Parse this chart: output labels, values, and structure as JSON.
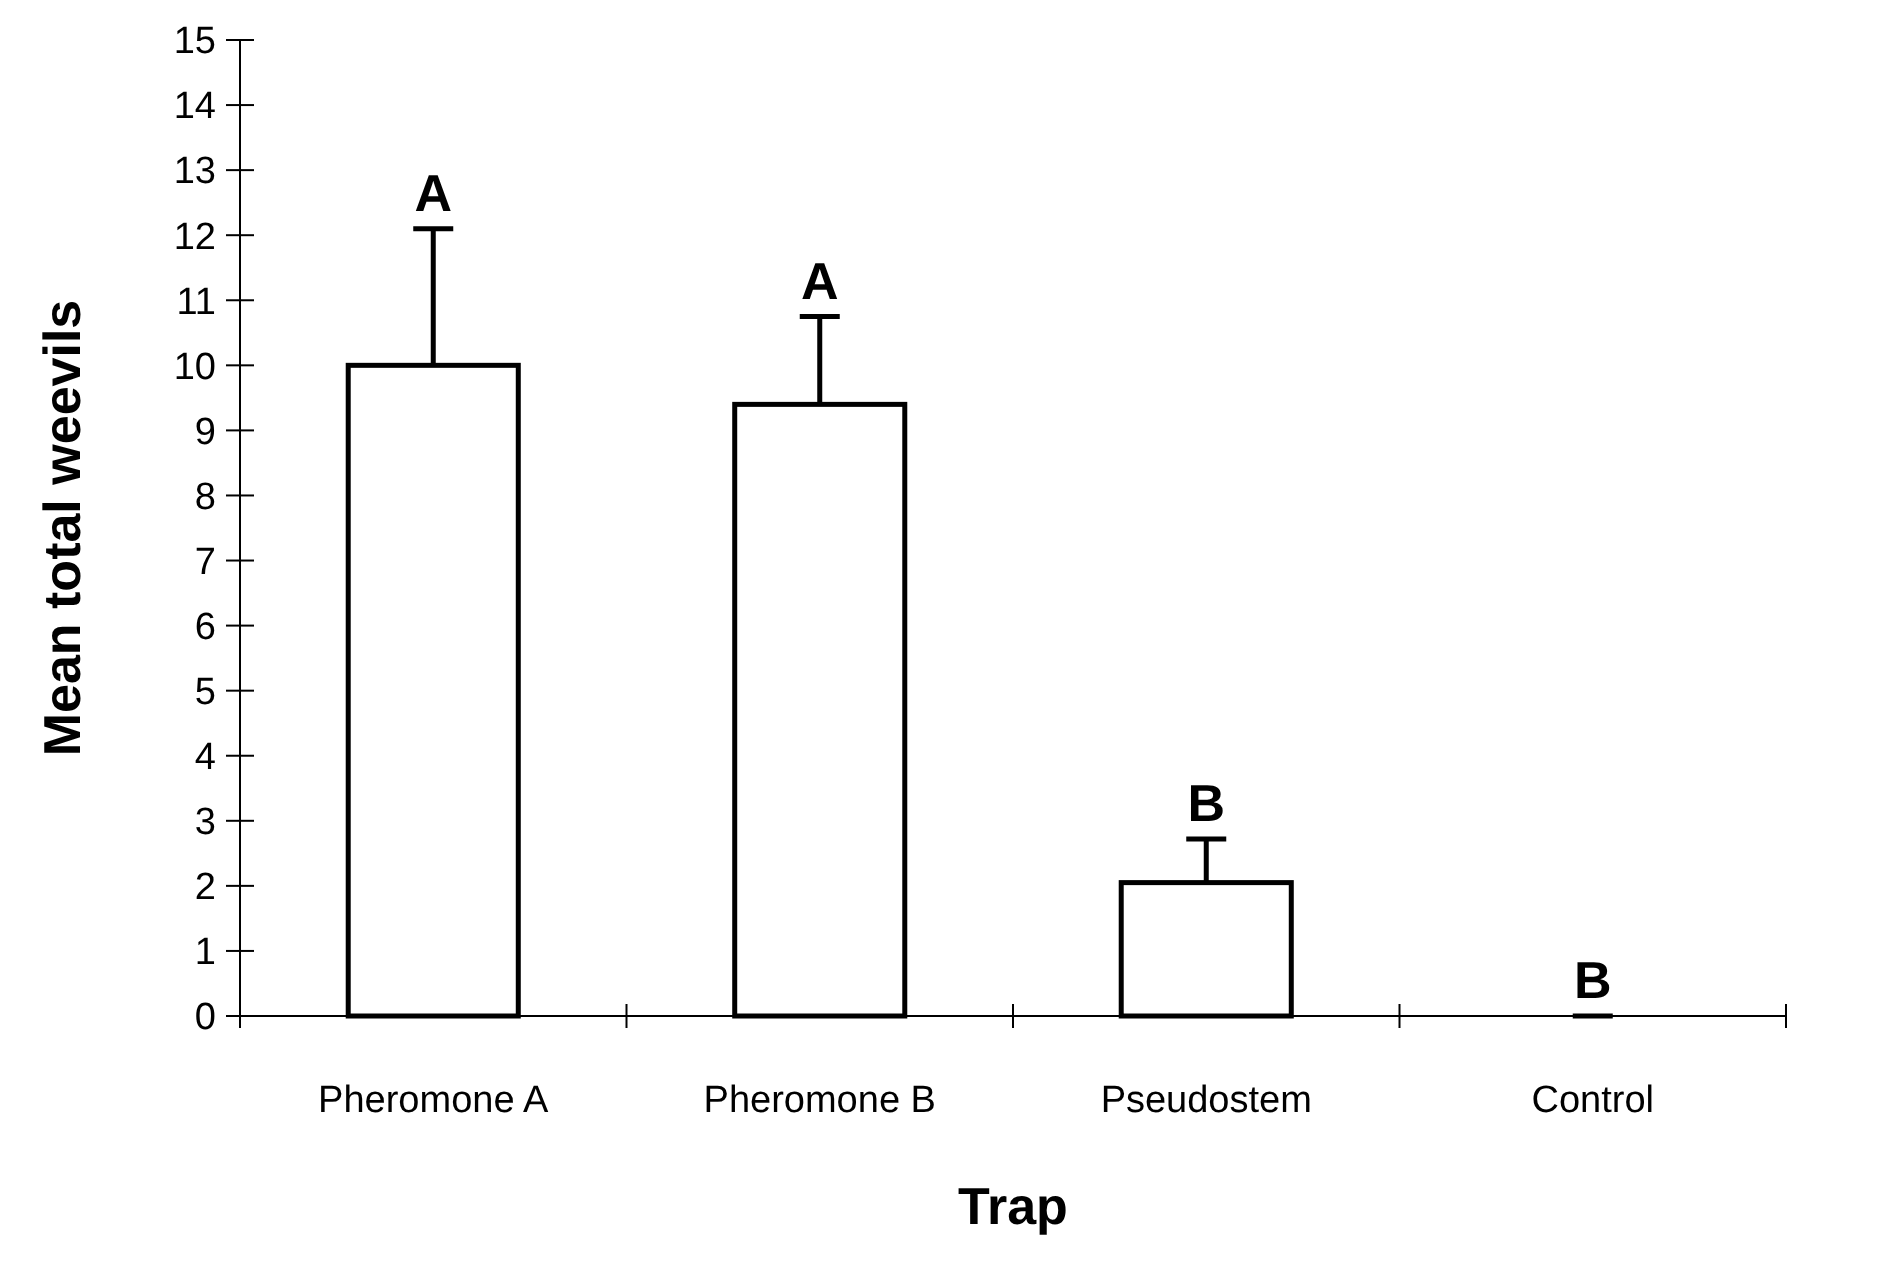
{
  "chart_data": {
    "type": "bar",
    "xlabel": "Trap",
    "ylabel": "Mean total weevils",
    "categories": [
      "Pheromone A",
      "Pheromone B",
      "Pseudostem",
      "Control"
    ],
    "values": [
      10,
      9.4,
      2.05,
      0
    ],
    "errors": [
      [
        10,
        12.1
      ],
      [
        9.4,
        10.75
      ],
      [
        2.05,
        2.72
      ],
      [
        0,
        0
      ]
    ],
    "color": "#ffffff",
    "ylim": [
      0,
      15
    ],
    "yticks": [
      0,
      1,
      2,
      3,
      4,
      5,
      6,
      7,
      8,
      9,
      10,
      11,
      12,
      13,
      14,
      15
    ],
    "annotations": [
      "A",
      "A",
      "B",
      "B"
    ]
  }
}
